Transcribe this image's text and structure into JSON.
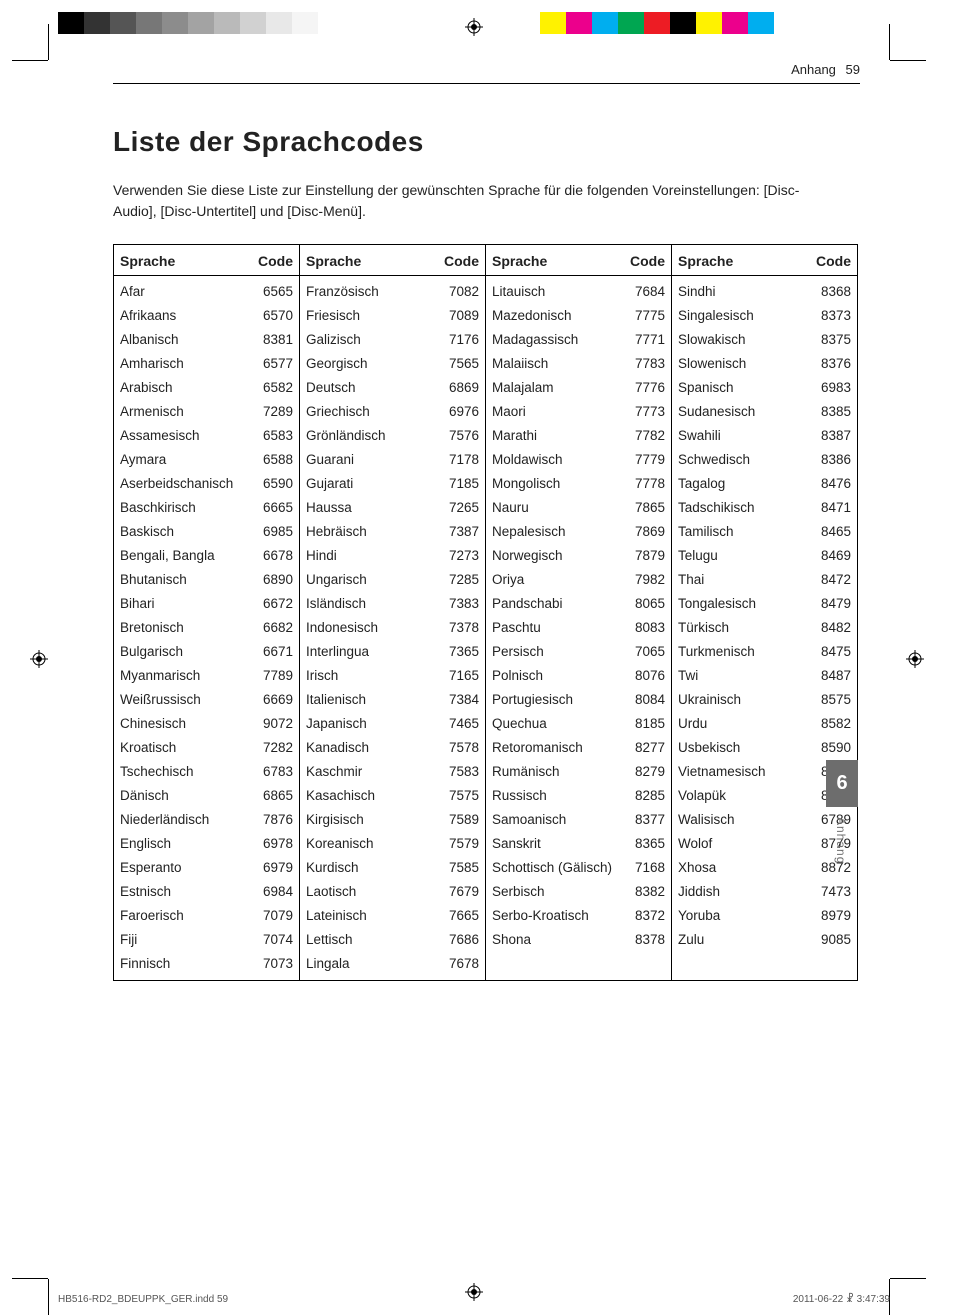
{
  "print_marks": {
    "grayscale_swatches": [
      "#000000",
      "#333333",
      "#555555",
      "#777777",
      "#8c8c8c",
      "#a3a3a3",
      "#bababa",
      "#d1d1d1",
      "#e8e8e8",
      "#f5f5f5",
      "#ffffff"
    ],
    "color_swatches": [
      "#fff200",
      "#ec008c",
      "#00aeef",
      "#00a651",
      "#ed1c24",
      "#000000",
      "#fff200",
      "#ec008c",
      "#00aeef",
      "#ffffff"
    ]
  },
  "header": {
    "section": "Anhang",
    "page_number": "59"
  },
  "title": "Liste der Sprachcodes",
  "intro": "Verwenden Sie diese Liste zur Einstellung der gewünschten Sprache für die folgenden Voreinstellungen: [Disc-Audio], [Disc-Untertitel] und [Disc-Menü].",
  "table": {
    "head_lang": "Sprache",
    "head_code": "Code",
    "columns": [
      [
        {
          "lang": "Afar",
          "code": "6565"
        },
        {
          "lang": "Afrikaans",
          "code": "6570"
        },
        {
          "lang": "Albanisch",
          "code": "8381"
        },
        {
          "lang": "Amharisch",
          "code": "6577"
        },
        {
          "lang": "Arabisch",
          "code": "6582"
        },
        {
          "lang": "Armenisch",
          "code": "7289"
        },
        {
          "lang": "Assamesisch",
          "code": "6583"
        },
        {
          "lang": "Aymara",
          "code": "6588"
        },
        {
          "lang": "Aserbeidschanisch",
          "code": "6590"
        },
        {
          "lang": "Baschkirisch",
          "code": "6665"
        },
        {
          "lang": "Baskisch",
          "code": "6985"
        },
        {
          "lang": "Bengali, Bangla",
          "code": "6678"
        },
        {
          "lang": "Bhutanisch",
          "code": "6890"
        },
        {
          "lang": "Bihari",
          "code": "6672"
        },
        {
          "lang": "Bretonisch",
          "code": "6682"
        },
        {
          "lang": "Bulgarisch",
          "code": "6671"
        },
        {
          "lang": "Myanmarisch",
          "code": "7789"
        },
        {
          "lang": "Weißrussisch",
          "code": "6669"
        },
        {
          "lang": "Chinesisch",
          "code": "9072"
        },
        {
          "lang": "Kroatisch",
          "code": "7282"
        },
        {
          "lang": "Tschechisch",
          "code": "6783"
        },
        {
          "lang": "Dänisch",
          "code": "6865"
        },
        {
          "lang": "Niederländisch",
          "code": "7876"
        },
        {
          "lang": "Englisch",
          "code": "6978"
        },
        {
          "lang": "Esperanto",
          "code": "6979"
        },
        {
          "lang": "Estnisch",
          "code": "6984"
        },
        {
          "lang": "Faroerisch",
          "code": "7079"
        },
        {
          "lang": "Fiji",
          "code": "7074"
        },
        {
          "lang": "Finnisch",
          "code": "7073"
        }
      ],
      [
        {
          "lang": "Französisch",
          "code": "7082"
        },
        {
          "lang": "Friesisch",
          "code": "7089"
        },
        {
          "lang": "Galizisch",
          "code": "7176"
        },
        {
          "lang": "Georgisch",
          "code": "7565"
        },
        {
          "lang": "Deutsch",
          "code": "6869"
        },
        {
          "lang": "Griechisch",
          "code": "6976"
        },
        {
          "lang": "Grönländisch",
          "code": "7576"
        },
        {
          "lang": "Guarani",
          "code": "7178"
        },
        {
          "lang": "Gujarati",
          "code": "7185"
        },
        {
          "lang": "Haussa",
          "code": "7265"
        },
        {
          "lang": "Hebräisch",
          "code": "7387"
        },
        {
          "lang": "Hindi",
          "code": "7273"
        },
        {
          "lang": "Ungarisch",
          "code": "7285"
        },
        {
          "lang": "Isländisch",
          "code": "7383"
        },
        {
          "lang": "Indonesisch",
          "code": "7378"
        },
        {
          "lang": "Interlingua",
          "code": "7365"
        },
        {
          "lang": "Irisch",
          "code": "7165"
        },
        {
          "lang": "Italienisch",
          "code": "7384"
        },
        {
          "lang": "Japanisch",
          "code": "7465"
        },
        {
          "lang": "Kanadisch",
          "code": "7578"
        },
        {
          "lang": "Kaschmir",
          "code": "7583"
        },
        {
          "lang": "Kasachisch",
          "code": "7575"
        },
        {
          "lang": "Kirgisisch",
          "code": "7589"
        },
        {
          "lang": "Koreanisch",
          "code": "7579"
        },
        {
          "lang": "Kurdisch",
          "code": "7585"
        },
        {
          "lang": "Laotisch",
          "code": "7679"
        },
        {
          "lang": "Lateinisch",
          "code": "7665"
        },
        {
          "lang": "Lettisch",
          "code": "7686"
        },
        {
          "lang": "Lingala",
          "code": "7678"
        }
      ],
      [
        {
          "lang": "Litauisch",
          "code": "7684"
        },
        {
          "lang": "Mazedonisch",
          "code": "7775"
        },
        {
          "lang": "Madagassisch",
          "code": "7771"
        },
        {
          "lang": "Malaiisch",
          "code": "7783"
        },
        {
          "lang": "Malajalam",
          "code": "7776"
        },
        {
          "lang": "Maori",
          "code": "7773"
        },
        {
          "lang": "Marathi",
          "code": "7782"
        },
        {
          "lang": "Moldawisch",
          "code": "7779"
        },
        {
          "lang": "Mongolisch",
          "code": "7778"
        },
        {
          "lang": "Nauru",
          "code": "7865"
        },
        {
          "lang": "Nepalesisch",
          "code": "7869"
        },
        {
          "lang": "Norwegisch",
          "code": "7879"
        },
        {
          "lang": "Oriya",
          "code": "7982"
        },
        {
          "lang": "Pandschabi",
          "code": "8065"
        },
        {
          "lang": "Paschtu",
          "code": "8083"
        },
        {
          "lang": "Persisch",
          "code": "7065"
        },
        {
          "lang": "Polnisch",
          "code": "8076"
        },
        {
          "lang": "Portugiesisch",
          "code": "8084"
        },
        {
          "lang": "Quechua",
          "code": "8185"
        },
        {
          "lang": "Retoromanisch",
          "code": "8277"
        },
        {
          "lang": "Rumänisch",
          "code": "8279"
        },
        {
          "lang": "Russisch",
          "code": "8285"
        },
        {
          "lang": "Samoanisch",
          "code": "8377"
        },
        {
          "lang": "Sanskrit",
          "code": "8365"
        },
        {
          "lang": "Schottisch (Gälisch)",
          "code": "7168"
        },
        {
          "lang": "Serbisch",
          "code": "8382"
        },
        {
          "lang": "Serbo-Kroatisch",
          "code": "8372"
        },
        {
          "lang": "Shona",
          "code": "8378"
        }
      ],
      [
        {
          "lang": "Sindhi",
          "code": "8368"
        },
        {
          "lang": "Singalesisch",
          "code": "8373"
        },
        {
          "lang": "Slowakisch",
          "code": "8375"
        },
        {
          "lang": "Slowenisch",
          "code": "8376"
        },
        {
          "lang": "Spanisch",
          "code": "6983"
        },
        {
          "lang": "Sudanesisch",
          "code": "8385"
        },
        {
          "lang": "Swahili",
          "code": "8387"
        },
        {
          "lang": "Schwedisch",
          "code": "8386"
        },
        {
          "lang": "Tagalog",
          "code": "8476"
        },
        {
          "lang": "Tadschikisch",
          "code": "8471"
        },
        {
          "lang": "Tamilisch",
          "code": "8465"
        },
        {
          "lang": "Telugu",
          "code": "8469"
        },
        {
          "lang": "Thai",
          "code": "8472"
        },
        {
          "lang": "Tongalesisch",
          "code": "8479"
        },
        {
          "lang": "Türkisch",
          "code": "8482"
        },
        {
          "lang": "Turkmenisch",
          "code": "8475"
        },
        {
          "lang": "Twi",
          "code": "8487"
        },
        {
          "lang": "Ukrainisch",
          "code": "8575"
        },
        {
          "lang": "Urdu",
          "code": "8582"
        },
        {
          "lang": "Usbekisch",
          "code": "8590"
        },
        {
          "lang": "Vietnamesisch",
          "code": "8673"
        },
        {
          "lang": "Volapük",
          "code": "8679"
        },
        {
          "lang": "Walisisch",
          "code": "6789"
        },
        {
          "lang": "Wolof",
          "code": "8779"
        },
        {
          "lang": "Xhosa",
          "code": "8872"
        },
        {
          "lang": "Jiddish",
          "code": "7473"
        },
        {
          "lang": "Yoruba",
          "code": "8979"
        },
        {
          "lang": "Zulu",
          "code": "9085"
        }
      ]
    ]
  },
  "side_tab": {
    "number": "6",
    "label": "Anhang"
  },
  "footer": {
    "file": "HB516-RD2_BDEUPPK_GER.indd   59",
    "timestamp": "2011-06-22   ☧ 3:47:39"
  }
}
